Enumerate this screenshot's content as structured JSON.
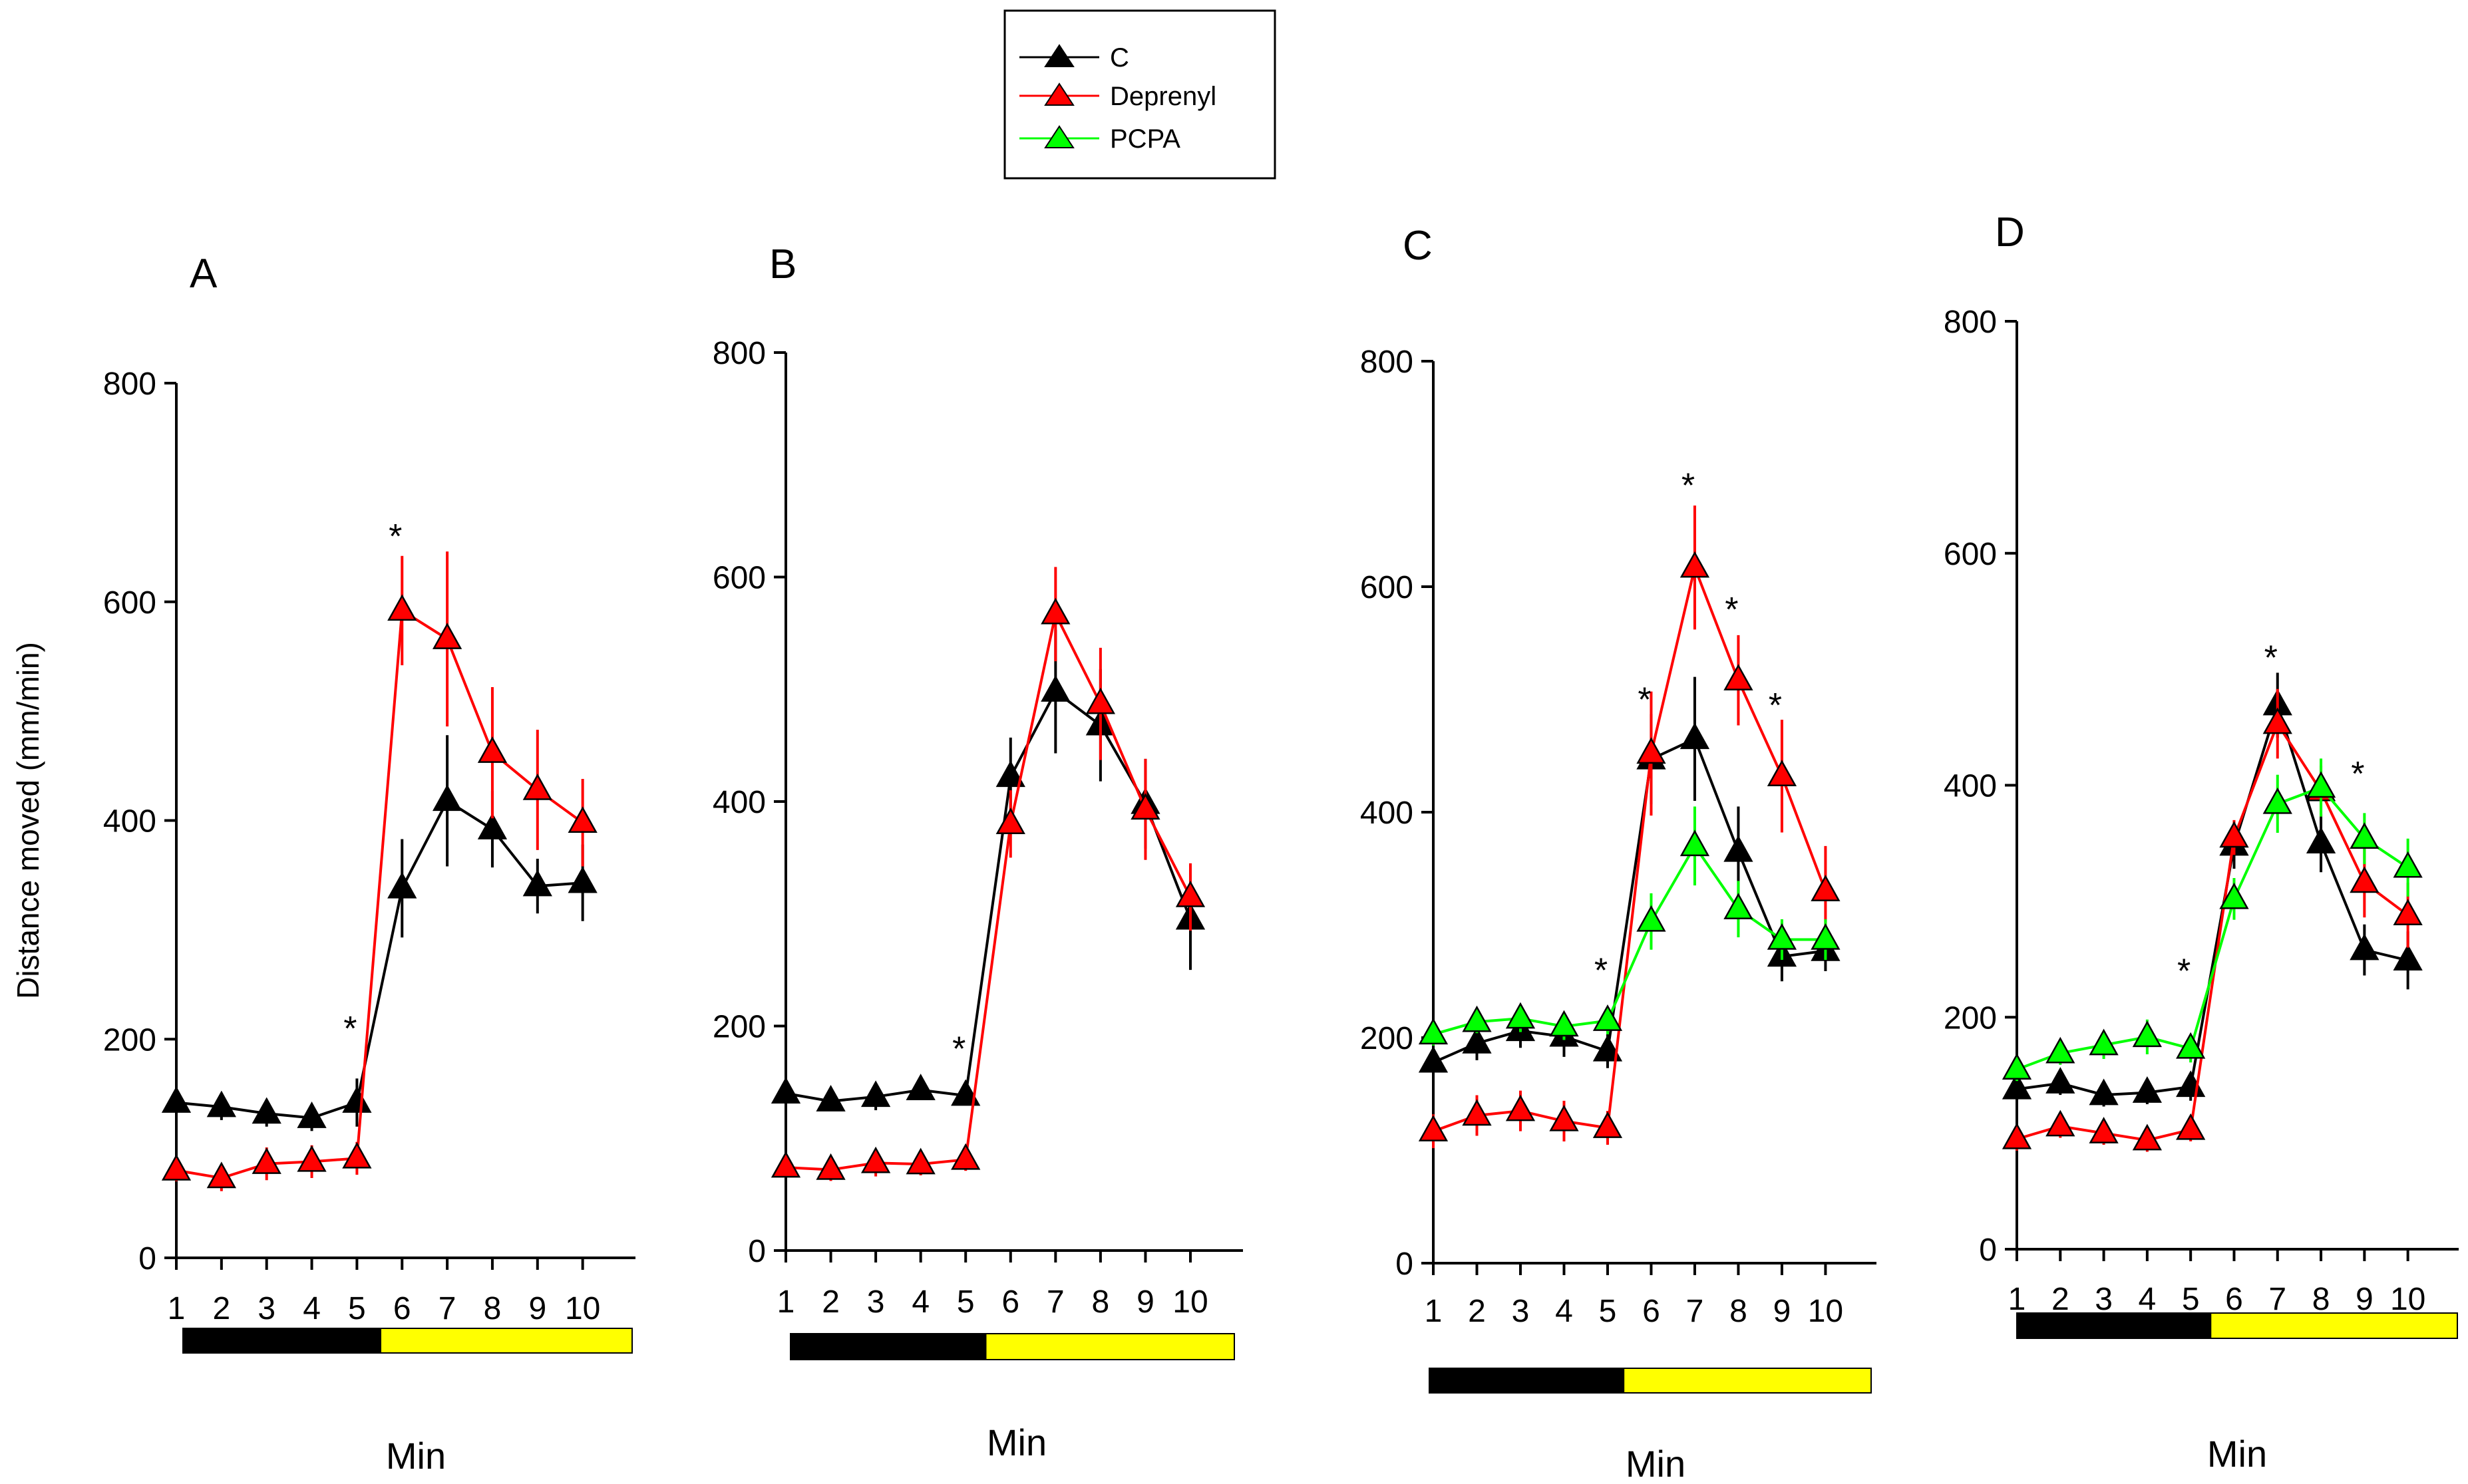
{
  "legend": [
    {
      "name": "C",
      "color": "#000000"
    },
    {
      "name": "Deprenyl",
      "color": "#ff0000"
    },
    {
      "name": "PCPA",
      "color": "#00ff00"
    }
  ],
  "colors": {
    "C": "#000000",
    "Deprenyl": "#ff0000",
    "PCPA": "#00ff00",
    "dark_phase": "#000000",
    "light_phase": "#ffff00"
  },
  "chart_data": [
    {
      "type": "line",
      "panel": "A",
      "title": "A",
      "xlabel": "Min",
      "ylabel": "Distance moved (mm/min)",
      "ylim": [
        0,
        800
      ],
      "yticks": [
        "0",
        "200",
        "400",
        "600",
        "800"
      ],
      "categories": [
        "1",
        "2",
        "3",
        "4",
        "5",
        "6",
        "7",
        "8",
        "9",
        "10"
      ],
      "series": [
        {
          "name": "C",
          "values": [
            142,
            138,
            132,
            128,
            142,
            338,
            418,
            392,
            340,
            343
          ],
          "errors": [
            10,
            12,
            12,
            12,
            22,
            45,
            60,
            35,
            25,
            35
          ]
        },
        {
          "name": "Deprenyl",
          "values": [
            80,
            73,
            86,
            88,
            91,
            592,
            566,
            462,
            428,
            398
          ],
          "errors": [
            10,
            12,
            15,
            15,
            15,
            50,
            80,
            60,
            55,
            40
          ]
        }
      ],
      "annotations": [
        {
          "x": "5",
          "text": "*",
          "anchor": 210
        },
        {
          "x": "6",
          "text": "*",
          "anchor": 660
        }
      ]
    },
    {
      "type": "line",
      "panel": "B",
      "title": "B",
      "xlabel": "Min",
      "ylabel": "",
      "ylim": [
        0,
        800
      ],
      "yticks": [
        "0",
        "200",
        "400",
        "600",
        "800"
      ],
      "categories": [
        "1",
        "2",
        "3",
        "4",
        "5",
        "6",
        "7",
        "8",
        "9",
        "10"
      ],
      "series": [
        {
          "name": "C",
          "values": [
            140,
            133,
            137,
            143,
            138,
            422,
            498,
            468,
            398,
            295
          ],
          "errors": [
            8,
            8,
            12,
            8,
            8,
            35,
            55,
            50,
            40,
            45
          ]
        },
        {
          "name": "Deprenyl",
          "values": [
            74,
            72,
            78,
            77,
            81,
            380,
            567,
            487,
            393,
            315
          ],
          "errors": [
            8,
            10,
            12,
            10,
            10,
            30,
            42,
            50,
            45,
            30
          ]
        }
      ],
      "annotations": [
        {
          "x": "5",
          "text": "*",
          "anchor": 180
        }
      ]
    },
    {
      "type": "line",
      "panel": "C",
      "title": "C",
      "xlabel": "Min",
      "ylabel": "",
      "ylim": [
        0,
        800
      ],
      "yticks": [
        "0",
        "200",
        "400",
        "600",
        "800"
      ],
      "categories": [
        "1",
        "2",
        "3",
        "4",
        "5",
        "6",
        "7",
        "8",
        "9",
        "10"
      ],
      "series": [
        {
          "name": "C",
          "values": [
            178,
            195,
            206,
            201,
            188,
            447,
            465,
            365,
            272,
            277
          ],
          "errors": [
            12,
            15,
            15,
            18,
            15,
            40,
            55,
            40,
            22,
            18
          ]
        },
        {
          "name": "Deprenyl",
          "values": [
            117,
            131,
            135,
            126,
            120,
            452,
            617,
            517,
            432,
            330
          ],
          "errors": [
            15,
            18,
            18,
            18,
            15,
            55,
            55,
            40,
            50,
            40
          ]
        },
        {
          "name": "PCPA",
          "values": [
            203,
            214,
            217,
            210,
            215,
            303,
            370,
            314,
            287,
            287
          ],
          "errors": [
            10,
            10,
            12,
            12,
            12,
            25,
            35,
            25,
            18,
            18
          ]
        }
      ],
      "annotations": [
        {
          "x": "5",
          "text": "*",
          "anchor": 260
        },
        {
          "x": "6",
          "text": "*",
          "anchor": 500
        },
        {
          "x": "7",
          "text": "*",
          "anchor": 690
        },
        {
          "x": "8",
          "text": "*",
          "anchor": 580
        },
        {
          "x": "9",
          "text": "*",
          "anchor": 495
        }
      ]
    },
    {
      "type": "line",
      "panel": "D",
      "title": "D",
      "xlabel": "Min",
      "ylabel": "",
      "ylim": [
        0,
        800
      ],
      "yticks": [
        "0",
        "200",
        "400",
        "600",
        "800"
      ],
      "categories": [
        "1",
        "2",
        "3",
        "4",
        "5",
        "6",
        "7",
        "8",
        "9",
        "10"
      ],
      "series": [
        {
          "name": "C",
          "values": [
            138,
            143,
            133,
            135,
            140,
            348,
            469,
            350,
            258,
            249
          ],
          "errors": [
            10,
            10,
            10,
            10,
            12,
            20,
            28,
            25,
            22,
            25
          ]
        },
        {
          "name": "Deprenyl",
          "values": [
            95,
            106,
            100,
            94,
            103,
            355,
            453,
            395,
            316,
            288
          ],
          "errors": [
            10,
            10,
            10,
            10,
            10,
            15,
            30,
            22,
            30,
            28
          ]
        },
        {
          "name": "PCPA",
          "values": [
            155,
            169,
            176,
            183,
            173,
            302,
            384,
            398,
            354,
            329
          ],
          "errors": [
            10,
            10,
            12,
            15,
            12,
            18,
            25,
            25,
            22,
            25
          ]
        }
      ],
      "annotations": [
        {
          "x": "5",
          "text": "*",
          "anchor": 240
        },
        {
          "x": "7",
          "text": "*",
          "anchor": 510
        },
        {
          "x": "9",
          "text": "*",
          "anchor": 410
        }
      ]
    }
  ]
}
